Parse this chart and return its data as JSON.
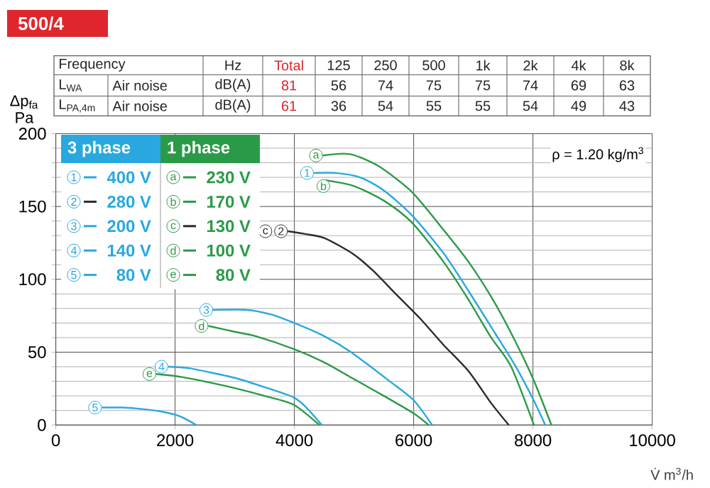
{
  "chart_data": {
    "type": "line",
    "title": "500/4",
    "ylabel": "Δp$_{fa}$ Pa",
    "xlabel": "V̇ m$^{3}$/h",
    "xlim": [
      0,
      10000
    ],
    "ylim": [
      0,
      200
    ],
    "xticks": [
      0,
      2000,
      4000,
      6000,
      8000,
      10000
    ],
    "yticks": [
      0,
      50,
      100,
      150,
      200
    ],
    "grid": true,
    "legend": "top left",
    "line_style": "solid",
    "series": [
      {
        "name": "400 V",
        "color": "#29a8e0",
        "x": [
          4326,
          4700,
          5100,
          5500,
          5970,
          6500,
          6920,
          7350,
          7714,
          8000,
          8207
        ],
        "values": [
          173,
          173,
          170,
          161,
          144,
          118,
          92,
          64,
          40,
          18,
          0
        ]
      },
      {
        "name": "280 V",
        "color": "#2b2b2b",
        "x": [
          3889,
          4200,
          4524,
          5000,
          5317,
          5700,
          6111,
          6500,
          6920,
          7300,
          7595
        ],
        "values": [
          133,
          131,
          128,
          117,
          106,
          90,
          73,
          55,
          37,
          15,
          0
        ]
      },
      {
        "name": "200 V",
        "color": "#29a8e0",
        "x": [
          2636,
          3200,
          3600,
          4000,
          4500,
          4950,
          5600,
          6000,
          6310
        ],
        "values": [
          79,
          79,
          76,
          70,
          61,
          50,
          30,
          17,
          0
        ]
      },
      {
        "name": "140 V",
        "color": "#29a8e0",
        "x": [
          1885,
          2238,
          2600,
          3033,
          3500,
          3986,
          4200,
          4462
        ],
        "values": [
          40,
          39,
          36,
          32,
          26,
          19,
          12,
          0
        ]
      },
      {
        "name": "80 V",
        "color": "#29a8e0",
        "x": [
          771,
          1100,
          1445,
          1800,
          2080,
          2357
        ],
        "values": [
          12,
          12,
          11,
          9,
          6,
          0
        ]
      },
      {
        "name": "230 V",
        "color": "#2b9a48",
        "x": [
          4476,
          4921,
          5400,
          5970,
          6500,
          6920,
          7300,
          7635,
          8000,
          8310
        ],
        "values": [
          185,
          186,
          178,
          160,
          134,
          112,
          88,
          63,
          32,
          0
        ]
      },
      {
        "name": "170 V",
        "color": "#2b9a48",
        "x": [
          4524,
          5000,
          5500,
          5970,
          6500,
          6920,
          7300,
          7635,
          8017
        ],
        "values": [
          168,
          164,
          154,
          139,
          112,
          86,
          60,
          40,
          0
        ]
      },
      {
        "name": "100 V",
        "color": "#2b9a48",
        "x": [
          2557,
          3000,
          3349,
          4000,
          4500,
          4935,
          5500,
          6000,
          6250
        ],
        "values": [
          68,
          64,
          61,
          52,
          43,
          33,
          20,
          8,
          0
        ]
      },
      {
        "name": "80 V",
        "color": "#2b9a48",
        "x": [
          1683,
          2100,
          2600,
          3033,
          3500,
          3986,
          4420
        ],
        "values": [
          35,
          33,
          29,
          25,
          20,
          14,
          0
        ]
      }
    ],
    "annotations": [
      {
        "text": "1",
        "x": 4326,
        "y": 173
      },
      {
        "text": "2",
        "x": 3889,
        "y": 133
      },
      {
        "text": "3",
        "x": 2636,
        "y": 79
      },
      {
        "text": "4",
        "x": 1885,
        "y": 40
      },
      {
        "text": "5",
        "x": 771,
        "y": 12
      },
      {
        "text": "a",
        "x": 4476,
        "y": 185
      },
      {
        "text": "b",
        "x": 4600,
        "y": 164
      },
      {
        "text": "c",
        "x": 3889,
        "y": 133
      },
      {
        "text": "d",
        "x": 2557,
        "y": 68
      },
      {
        "text": "e",
        "x": 1683,
        "y": 35
      },
      "3 phase",
      "1 phase",
      "ρ = 1.20 kg/m$^{3}$",
      "130 V",
      "Frequency",
      "Hz",
      "Total",
      "125",
      "250",
      "500",
      "1k",
      "2k",
      "4k",
      "8k",
      "L$_{WA}$",
      "Air noise",
      "dB(A)",
      "81",
      "56",
      "74",
      "75",
      "75",
      "74",
      "69",
      "63",
      "L$_{PA,4m}$",
      "Air noise",
      "dB(A)",
      "61",
      "36",
      "54",
      "55",
      "55",
      "54",
      "49",
      "43"
    ]
  }
}
